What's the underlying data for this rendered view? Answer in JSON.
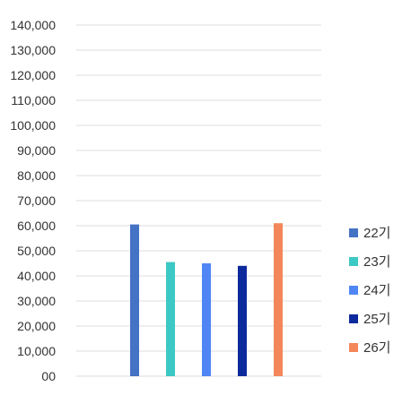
{
  "chart_data": {
    "type": "bar",
    "title": "",
    "xlabel": "",
    "ylabel": "",
    "ylim": [
      0,
      140000
    ],
    "y_ticks": [
      0,
      10000,
      20000,
      30000,
      40000,
      50000,
      60000,
      70000,
      80000,
      90000,
      100000,
      110000,
      120000,
      130000,
      140000
    ],
    "y_tick_labels": [
      "00",
      "10,000",
      "20,000",
      "30,000",
      "40,000",
      "50,000",
      "60,000",
      "70,000",
      "80,000",
      "90,000",
      "100,000",
      "110,000",
      "120,000",
      "130,000",
      "140,000"
    ],
    "grid": true,
    "legend_position": "right",
    "series": [
      {
        "name": "22기",
        "value": 60500,
        "color": "#4472C4"
      },
      {
        "name": "23기",
        "value": 45500,
        "color": "#3CC8C4"
      },
      {
        "name": "24기",
        "value": 45000,
        "color": "#4F86F4"
      },
      {
        "name": "25기",
        "value": 44000,
        "color": "#0D2A9C"
      },
      {
        "name": "26기",
        "value": 61000,
        "color": "#F4875A"
      }
    ]
  }
}
